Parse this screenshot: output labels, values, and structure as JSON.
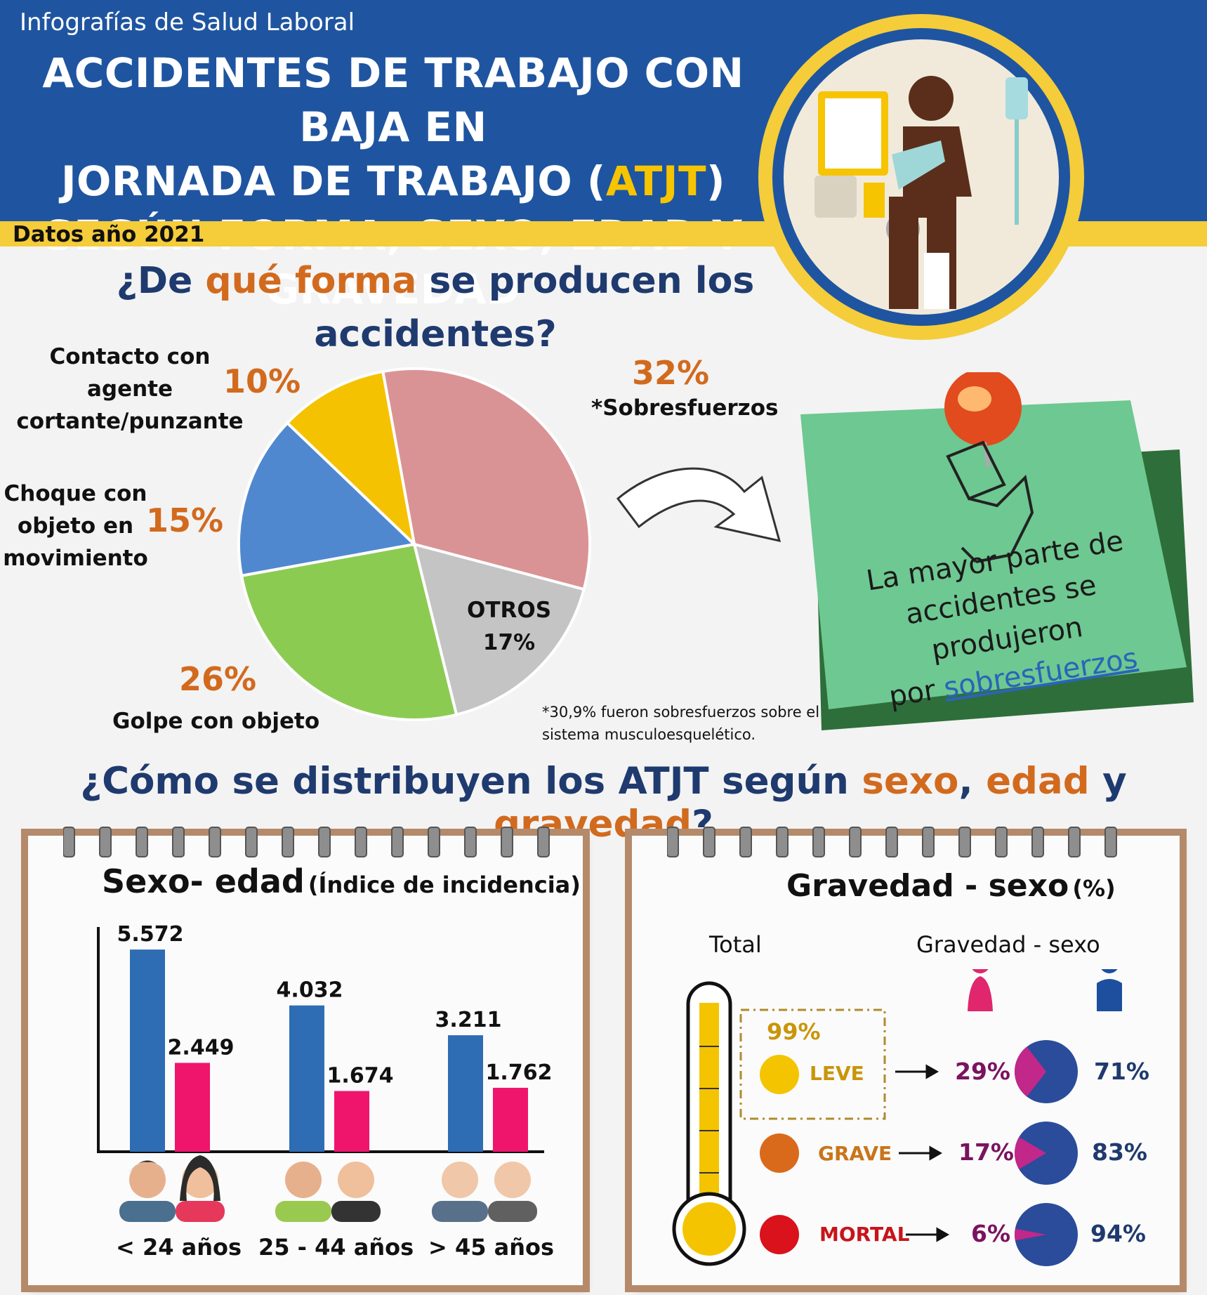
{
  "header": {
    "brand": "Infografías de Salud Laboral",
    "title_line1": "ACCIDENTES DE TRABAJO CON BAJA EN",
    "title_line2_a": "JORNADA DE TRABAJO (",
    "title_line2_hl": "ATJT",
    "title_line2_b": ")",
    "title_line3": "SEGÚN FORMA, SEXO, EDAD Y GRAVEDAD",
    "year": "Datos año 2021"
  },
  "section1": {
    "question_a": "¿De ",
    "question_hl": "qué forma",
    "question_b": " se producen los",
    "question_c": "accidentes?",
    "labels": {
      "contacto": [
        "Contacto con",
        "agente",
        "cortante/punzante"
      ],
      "choque": [
        "Choque con",
        "objeto en",
        "movimiento"
      ],
      "golpe": "Golpe con objeto",
      "sobre": "*Sobresfuerzos",
      "otros": "OTROS",
      "otros_pct": "17%"
    },
    "pcts": {
      "contacto": "10%",
      "choque": "15%",
      "golpe": "26%",
      "sobre": "32%"
    },
    "note": [
      "*30,9% fueron sobresfuerzos sobre el",
      "sistema musculoesquelético."
    ],
    "sticky": {
      "line1": "La mayor parte de",
      "line2": "accidentes se produjeron",
      "line3_a": "por ",
      "line3_link": "sobresfuerzos"
    }
  },
  "section2": {
    "question_a": "¿Cómo se distribuyen los ATJT según ",
    "q_sexo": "sexo",
    "q_sep1": ", ",
    "q_edad": "edad",
    "q_sep2": " y ",
    "q_grav": "gravedad",
    "q_end": "?"
  },
  "pad1": {
    "title": "Sexo- edad",
    "subtitle": "(Índice de incidencia)"
  },
  "pad2": {
    "title": "Gravedad - sexo",
    "subtitle": "(%)",
    "col_total": "Total",
    "col_gs": "Gravedad - sexo",
    "leve_total": "99%",
    "rows": [
      {
        "label": "LEVE",
        "women": "29%",
        "men": "71%"
      },
      {
        "label": "GRAVE",
        "women": "17%",
        "men": "83%"
      },
      {
        "label": "MORTAL",
        "women": "6%",
        "men": "94%"
      }
    ]
  },
  "colors": {
    "blue": "#2e6db4",
    "pink": "#f0156c",
    "orange": "#d26a1e",
    "navy": "#1f3a6e"
  },
  "chart_data": [
    {
      "type": "pie",
      "categories": [
        "*Sobresfuerzos",
        "OTROS",
        "Golpe con objeto",
        "Choque con objeto en movimiento",
        "Contacto con agente cortante/punzante"
      ],
      "values": [
        32,
        17,
        26,
        15,
        10
      ],
      "colors": [
        "#da9395",
        "#c4c4c4",
        "#8ccb52",
        "#5088d0",
        "#f4c200"
      ]
    },
    {
      "type": "bar",
      "title": "Sexo- edad (Índice de incidencia)",
      "categories": [
        "< 24 años",
        "25 - 44 años",
        "> 45 años"
      ],
      "value_labels": [
        [
          "5.572",
          "2.449"
        ],
        [
          "4.032",
          "1.674"
        ],
        [
          "3.211",
          "1.762"
        ]
      ],
      "series": [
        {
          "values": [
            5572,
            4032,
            3211
          ],
          "color": "#2e6db4"
        },
        {
          "values": [
            2449,
            1674,
            1762
          ],
          "color": "#f0156c"
        }
      ],
      "ylim": [
        0,
        6000
      ]
    },
    {
      "type": "pie",
      "title": "Gravedad - sexo (%)",
      "categories": [
        "LEVE",
        "GRAVE",
        "MORTAL"
      ],
      "series": [
        {
          "values": [
            29,
            17,
            6
          ],
          "color": "#c2278a"
        },
        {
          "values": [
            71,
            83,
            94
          ],
          "color": "#2a4c9a"
        }
      ]
    }
  ]
}
